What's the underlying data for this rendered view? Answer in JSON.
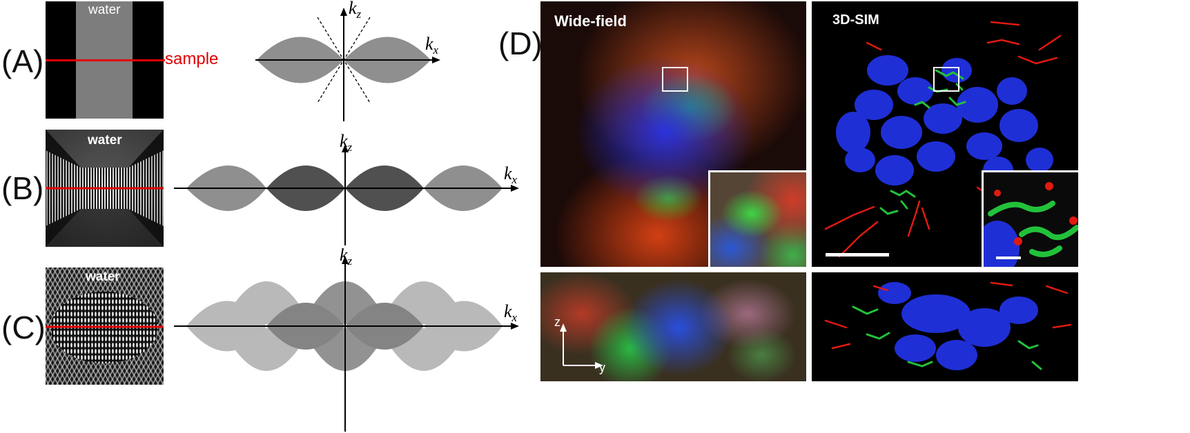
{
  "panels": {
    "A": {
      "letter": "(A)",
      "medium_label": "water",
      "sample_label": "sample"
    },
    "B": {
      "letter": "(B)",
      "medium_label": "water"
    },
    "C": {
      "letter": "(C)",
      "medium_label": "water"
    },
    "D": {
      "letter": "(D)",
      "left_title": "Wide-field",
      "right_title": "3D-SIM"
    }
  },
  "axes": {
    "kz_main": "k",
    "kz_sub": "z",
    "kx_main": "k",
    "kx_sub": "x"
  },
  "orientation": {
    "z_label": "z",
    "y_label": "y"
  },
  "colors": {
    "sample_line": "#e10000",
    "lobe_light": "#8f8f8f",
    "lobe_dark": "#505050",
    "lobe_darker": "#2a2a2a",
    "nuclei": "#1f2fd6",
    "green_label": "#22c13a",
    "red_label": "#e01a10"
  }
}
